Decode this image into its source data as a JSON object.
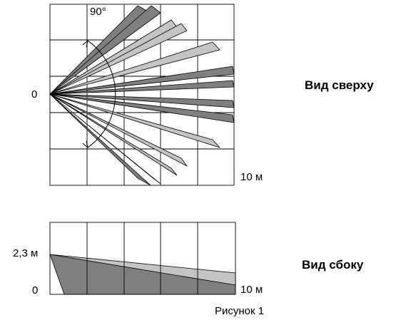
{
  "top_view": {
    "angle_label": "90°",
    "origin_label": "0",
    "range_label": "10 м",
    "caption": "Вид сверху"
  },
  "side_view": {
    "height_label": "2,3 м",
    "origin_label": "0",
    "range_label": "10 м",
    "caption": "Вид сбоку"
  },
  "figure_caption": "Рисунок 1",
  "colors": {
    "dark_zone": "#7f7f7f",
    "light_zone": "#c4c4c4",
    "grid": "#000000"
  }
}
